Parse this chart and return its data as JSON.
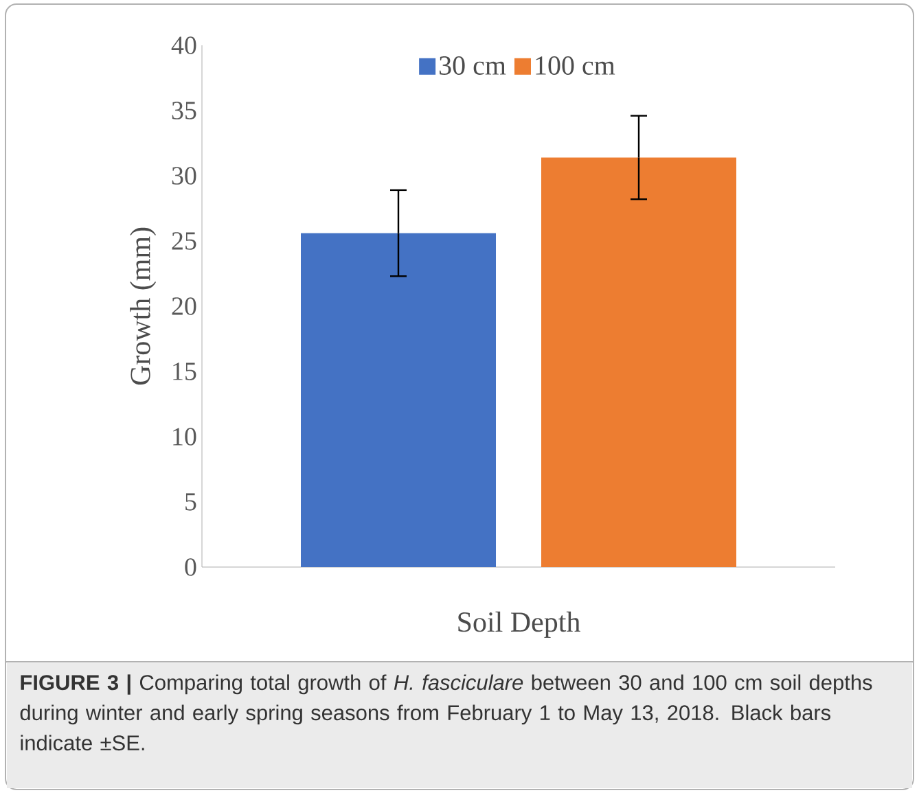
{
  "chart_data": {
    "type": "bar",
    "xlabel": "Soil Depth",
    "ylabel": "Growth (mm)",
    "categories": [
      null
    ],
    "series": [
      {
        "name": "30 cm",
        "color": "#4472c4",
        "values": [
          25.6
        ],
        "errors": [
          3.3
        ]
      },
      {
        "name": "100 cm",
        "color": "#ed7d31",
        "values": [
          31.4
        ],
        "errors": [
          3.2
        ]
      }
    ],
    "ylim": [
      0,
      40
    ],
    "yticks": [
      0,
      5,
      10,
      15,
      20,
      25,
      30,
      35,
      40
    ],
    "legend": "top",
    "annotations": [
      "**FIGURE 3 |** Comparing total growth of *H. fasciculare* between 30 and 100 cm soil depths during winter and early spring seasons from February 1 to May 13, 2018. Black bars indicate ±SE."
    ]
  }
}
